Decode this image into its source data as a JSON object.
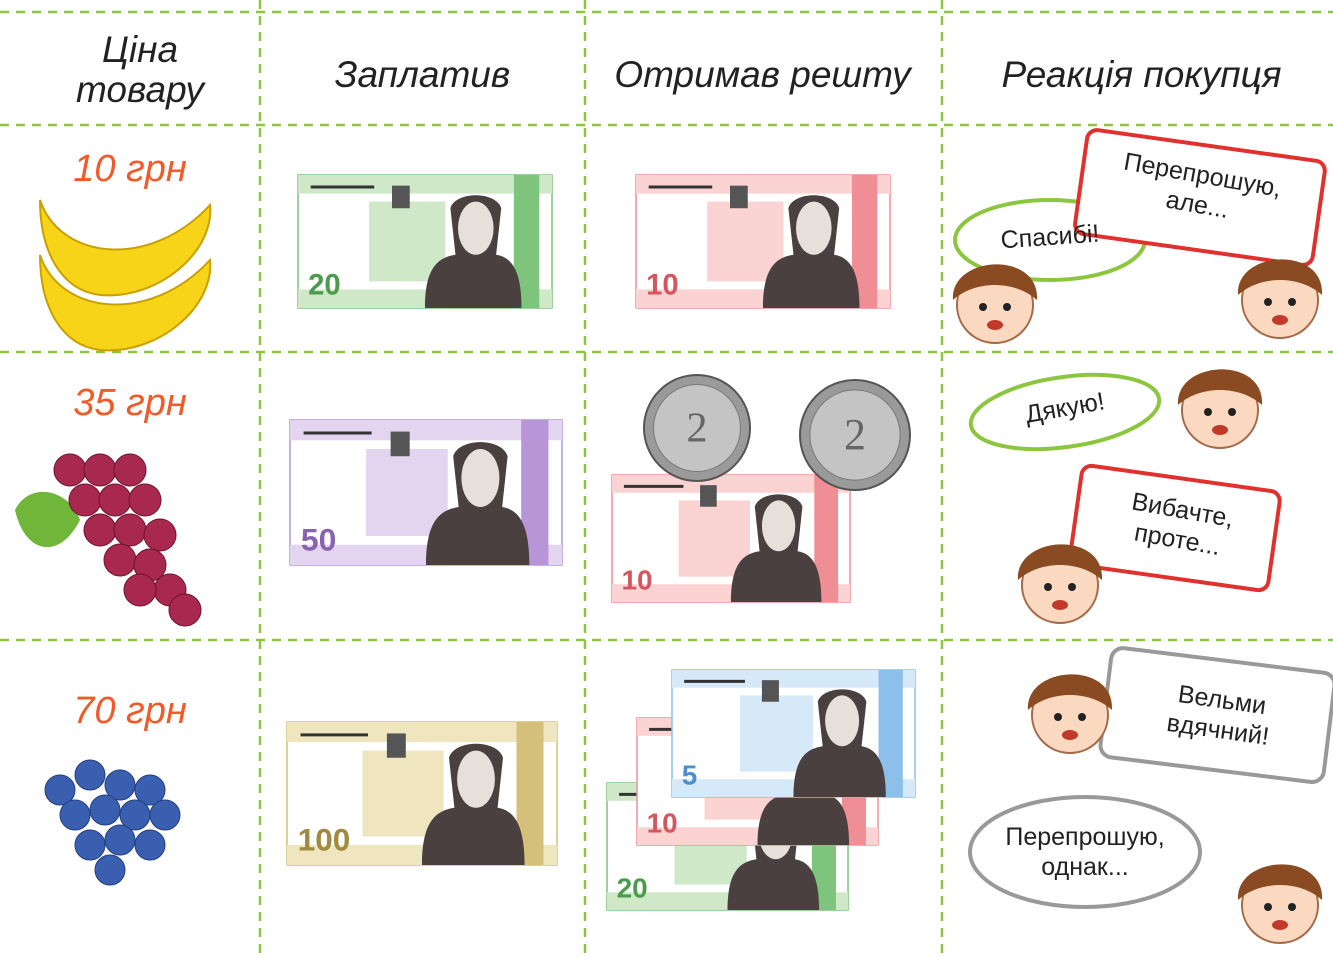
{
  "table": {
    "headers": [
      "Ціна товару",
      "Заплатив",
      "Отримав решту",
      "Реакція покупця"
    ],
    "rows": [
      {
        "price": "10 грн",
        "paid": [
          "20"
        ],
        "change": [
          "10"
        ],
        "reactions": [
          "Спасибі!",
          "Перепрошую, але..."
        ]
      },
      {
        "price": "35 грн",
        "paid": [
          "50"
        ],
        "change": [
          "2",
          "2",
          "10"
        ],
        "reactions": [
          "Дякую!",
          "Вибачте, проте..."
        ]
      },
      {
        "price": "70 грн",
        "paid": [
          "100"
        ],
        "change": [
          "20",
          "10",
          "5"
        ],
        "reactions": [
          "Вельми вдячний!",
          "Перепрошую, однак..."
        ]
      }
    ]
  }
}
